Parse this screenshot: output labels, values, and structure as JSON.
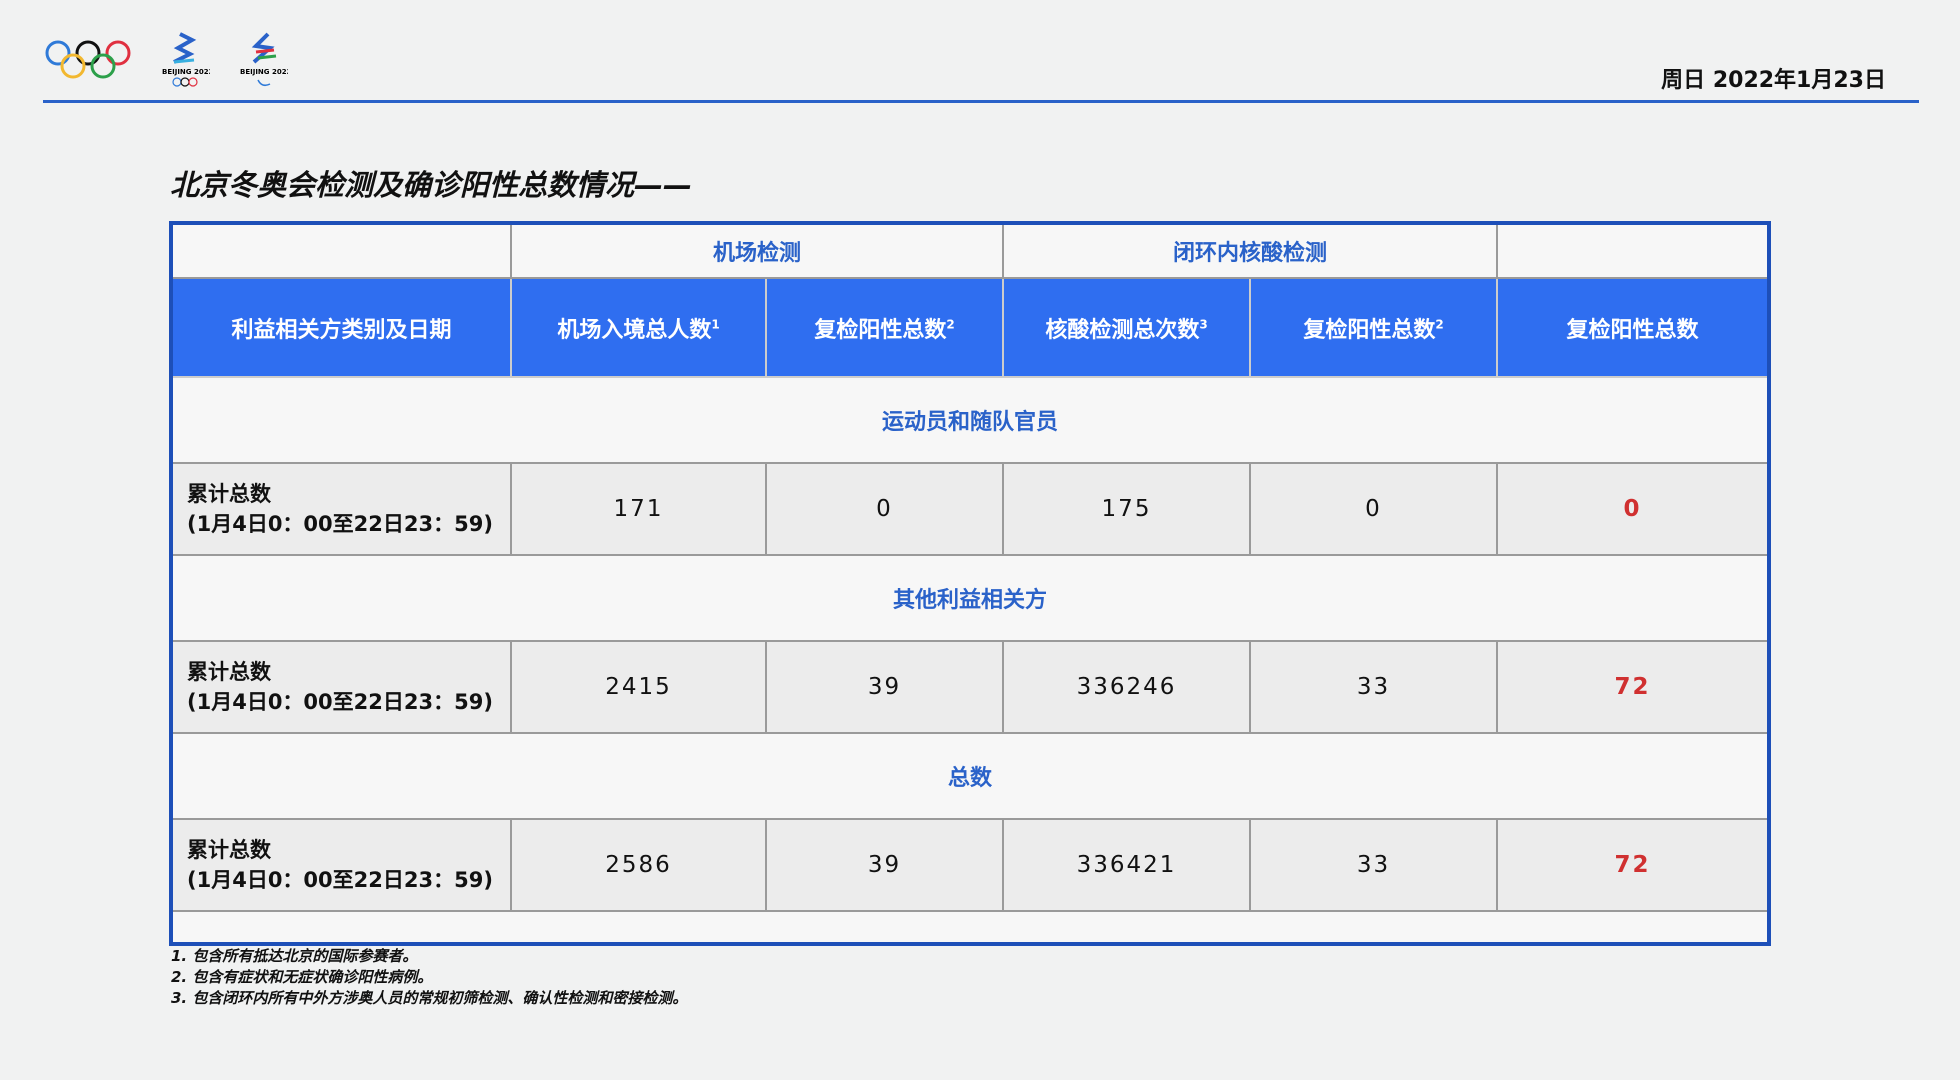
{
  "header": {
    "logos": [
      "olympic-rings",
      "beijing-2022-olympic-emblem",
      "beijing-2022-paralympic-emblem"
    ],
    "logo_text": "BEIJING 2022",
    "date": "周日 2022年1月23日"
  },
  "title": "北京冬奥会检测及确诊阳性总数情况——",
  "table": {
    "group_headers": [
      "机场检测",
      "闭环内核酸检测"
    ],
    "columns": [
      {
        "label": "利益相关方类别及日期",
        "sup": ""
      },
      {
        "label": "机场入境总人数",
        "sup": "1"
      },
      {
        "label": "复检阳性总数",
        "sup": "2"
      },
      {
        "label": "核酸检测总次数",
        "sup": "3"
      },
      {
        "label": "复检阳性总数",
        "sup": "2"
      },
      {
        "label": "复检阳性总数",
        "sup": ""
      }
    ],
    "sections": [
      {
        "title": "运动员和随队官员",
        "label1": "累计总数",
        "label2": "(1月4日0：00至22日23：59)",
        "values": [
          "171",
          "0",
          "175",
          "0",
          "0"
        ]
      },
      {
        "title": "其他利益相关方",
        "label1": "累计总数",
        "label2": "(1月4日0：00至22日23：59)",
        "values": [
          "2415",
          "39",
          "336246",
          "33",
          "72"
        ]
      },
      {
        "title": "总数",
        "label1": "累计总数",
        "label2": "(1月4日0：00至22日23：59)",
        "values": [
          "2586",
          "39",
          "336421",
          "33",
          "72"
        ]
      }
    ]
  },
  "notes": [
    "1. 包含所有抵达北京的国际参赛者。",
    "2. 包含有症状和无症状确诊阳性病例。",
    "3. 包含闭环内所有中外方涉奥人员的常规初筛检测、确认性检测和密接检测。"
  ],
  "colors": {
    "accent": "#2f6ef0",
    "highlight": "#d03030"
  }
}
